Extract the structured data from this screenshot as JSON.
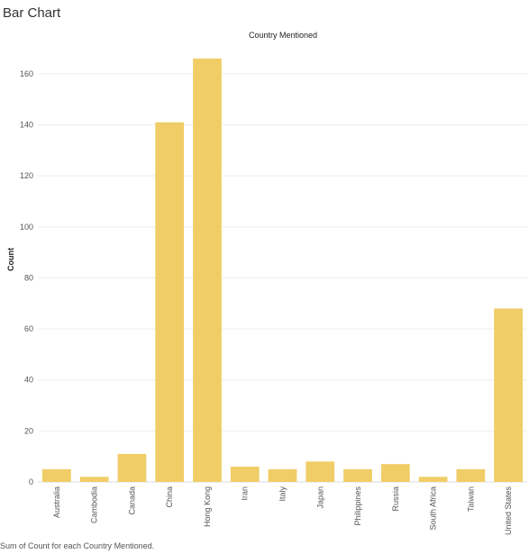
{
  "sheet_title": "Bar Chart",
  "caption": "Sum of Count for each Country Mentioned.",
  "chart_data": {
    "type": "bar",
    "title": "Country Mentioned",
    "xlabel": "",
    "ylabel": "Count",
    "categories": [
      "Australia",
      "Cambodia",
      "Canada",
      "China",
      "Hong Kong",
      "Iran",
      "Italy",
      "Japan",
      "Philippines",
      "Russia",
      "South Africa",
      "Taiwan",
      "United States"
    ],
    "values": [
      5,
      2,
      11,
      141,
      166,
      6,
      5,
      8,
      5,
      7,
      2,
      5,
      68
    ],
    "ylim": [
      0,
      172
    ],
    "yticks": [
      0,
      20,
      40,
      60,
      80,
      100,
      120,
      140,
      160
    ],
    "grid": true,
    "bar_color": "#f0cd66",
    "grid_color": "#eeeeee"
  }
}
